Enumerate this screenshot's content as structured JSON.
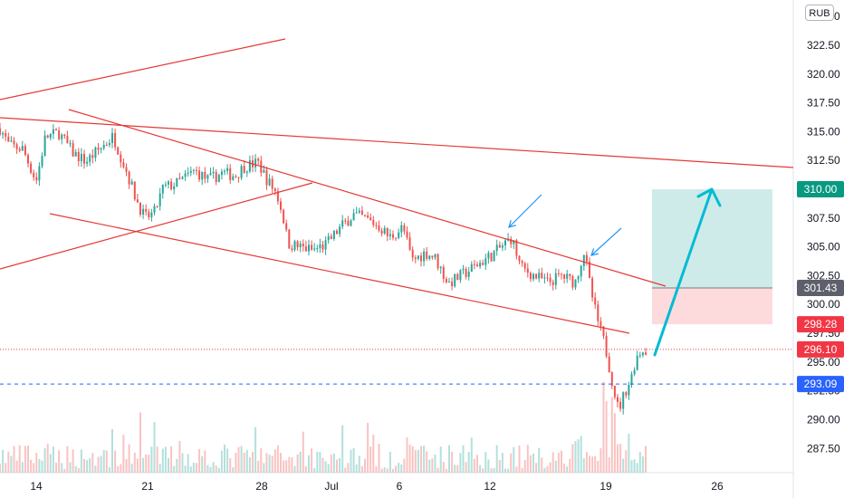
{
  "currency": "RUB",
  "chart_data": {
    "type": "candlestick",
    "title": "",
    "xlabel": "",
    "ylabel": "",
    "x_tick_labels": [
      "14",
      "21",
      "28",
      "Jul",
      "6",
      "12",
      "19",
      "26"
    ],
    "y_ticks": [
      287.5,
      290.0,
      292.5,
      295.0,
      297.5,
      300.0,
      302.5,
      305.0,
      307.5,
      310.0,
      312.5,
      315.0,
      317.5,
      320.0,
      322.5,
      325.0
    ],
    "ylim": [
      286.5,
      325.8
    ],
    "price_labels": [
      {
        "value": 310.0,
        "text": "310.00",
        "color": "#089981"
      },
      {
        "value": 301.43,
        "text": "301.43",
        "color": "#5d606b"
      },
      {
        "value": 298.28,
        "text": "298.28",
        "color": "#f23645"
      },
      {
        "value": 296.1,
        "text": "296.10",
        "color": "#f23645"
      },
      {
        "value": 293.09,
        "text": "293.09",
        "color": "#2962ff"
      }
    ],
    "horizontal_lines": [
      {
        "value": 296.1,
        "style": "dotted",
        "color": "#f23645"
      },
      {
        "value": 293.09,
        "style": "dashed",
        "color": "#2962ff"
      }
    ],
    "position_box": {
      "entry": 301.43,
      "target": 310.0,
      "stop": 298.28
    },
    "colors": {
      "up": "#26a69a",
      "down": "#ef5350",
      "trendline": "#e53935",
      "projection_arrow": "#00bcd4",
      "marker_arrow": "#2196f3"
    }
  }
}
